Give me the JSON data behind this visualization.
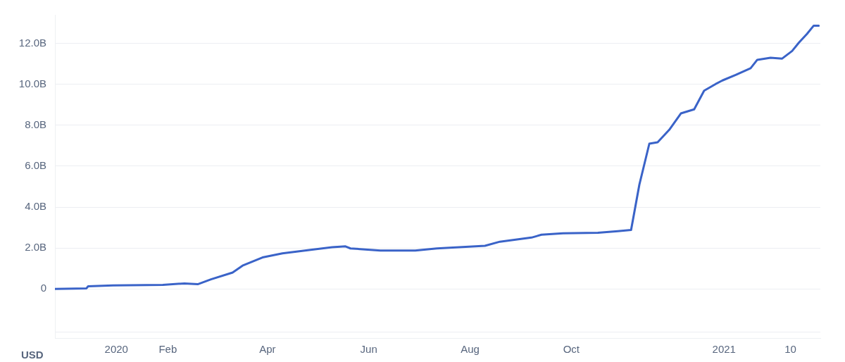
{
  "chart_data": {
    "type": "line",
    "grid": "y",
    "legend": false,
    "marker": "none",
    "line_style": "solid",
    "annotations": [
      "USD"
    ],
    "x": [
      "2019-11-25",
      "2019-12-14",
      "2019-12-15",
      "2019-12-30",
      "2020-01-29",
      "2020-02-11",
      "2020-02-19",
      "2020-02-27",
      "2020-03-11",
      "2020-03-17",
      "2020-03-29",
      "2020-04-10",
      "2020-04-27",
      "2020-05-10",
      "2020-05-18",
      "2020-05-21",
      "2020-06-08",
      "2020-06-29",
      "2020-07-12",
      "2020-08-10",
      "2020-08-19",
      "2020-09-07",
      "2020-09-13",
      "2020-09-26",
      "2020-10-17",
      "2020-10-29",
      "2020-11-06",
      "2020-11-11",
      "2020-11-17",
      "2020-11-22",
      "2020-11-29",
      "2020-12-06",
      "2020-12-14",
      "2020-12-20",
      "2020-12-27",
      "2020-12-31",
      "2021-01-08",
      "2021-01-17",
      "2021-01-21",
      "2021-01-29",
      "2021-02-05",
      "2021-02-11",
      "2021-02-15",
      "2021-02-20",
      "2021-02-24",
      "2021-02-27"
    ],
    "series": [
      {
        "color": "#3a63c8",
        "values": [
          0,
          0.03,
          0.13,
          0.17,
          0.2,
          0.27,
          0.23,
          0.47,
          0.8,
          1.14,
          1.54,
          1.74,
          1.91,
          2.04,
          2.08,
          1.98,
          1.88,
          1.88,
          1.98,
          2.11,
          2.31,
          2.51,
          2.65,
          2.72,
          2.75,
          2.82,
          2.88,
          5.1,
          7.1,
          7.17,
          7.78,
          8.58,
          8.78,
          9.69,
          10.02,
          10.19,
          10.46,
          10.79,
          11.2,
          11.3,
          11.26,
          11.63,
          12.03,
          12.47,
          12.87,
          12.87
        ]
      }
    ],
    "xlim": [
      "2019-11-25",
      "2021-02-28"
    ],
    "xticks": [
      {
        "value": "2020-01-01",
        "label": "2020"
      },
      {
        "value": "2020-02-01",
        "label": "Feb"
      },
      {
        "value": "2020-04-01",
        "label": "Apr"
      },
      {
        "value": "2020-06-01",
        "label": "Jun"
      },
      {
        "value": "2020-08-01",
        "label": "Aug"
      },
      {
        "value": "2020-10-01",
        "label": "Oct"
      },
      {
        "value": "2021-01-01",
        "label": "2021"
      },
      {
        "value": "2021-02-10",
        "label": "10"
      }
    ],
    "ylim": [
      -2.4,
      13.4
    ],
    "yticks": [
      {
        "value": -2.1,
        "label": null
      },
      0,
      {
        "value": 2,
        "label": "2.0B"
      },
      {
        "value": 4,
        "label": "4.0B"
      },
      {
        "value": 6,
        "label": "6.0B"
      },
      {
        "value": 8,
        "label": "8.0B"
      },
      {
        "value": 10,
        "label": "10.0B"
      },
      {
        "value": 12,
        "label": "12.0B"
      }
    ]
  }
}
